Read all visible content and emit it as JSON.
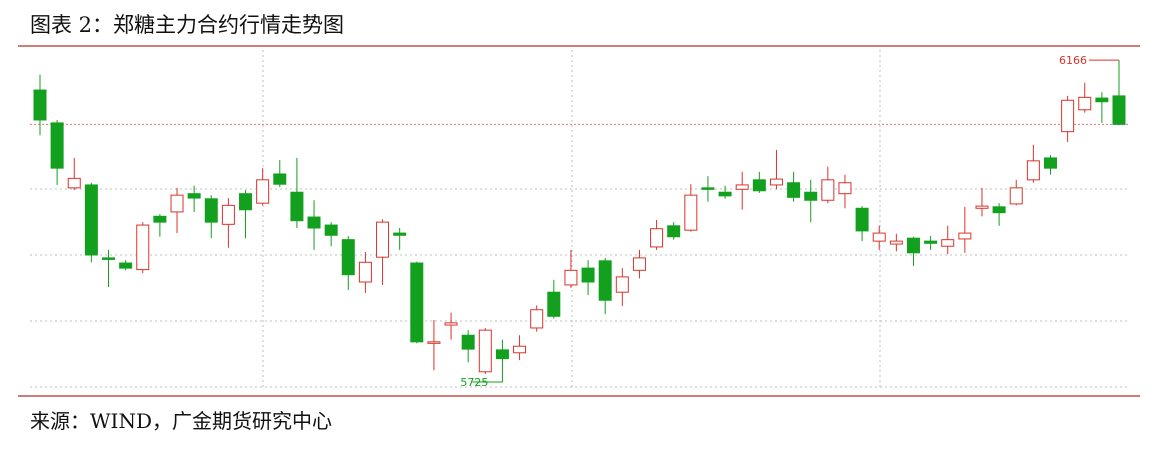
{
  "chart_data": {
    "type": "candlestick",
    "title": "图表 2：郑糖主力合约行情走势图",
    "source": "来源：WIND，广金期货研究中心",
    "up_color": "#d9342b",
    "down_color": "#12a01e",
    "ylim": [
      5714,
      6184
    ],
    "open": [
      6125,
      6080,
      5991,
      5995,
      5895,
      5888,
      5879,
      5952,
      5958,
      5983,
      5976,
      5941,
      5983,
      5970,
      6010,
      5985,
      5951,
      5940,
      5920,
      5862,
      5896,
      5929,
      5888,
      5778,
      5803,
      5789,
      5739,
      5769,
      5765,
      5799,
      5848,
      5858,
      5881,
      5891,
      5848,
      5878,
      5910,
      5939,
      5933,
      5991,
      5985,
      5989,
      6002,
      5995,
      5998,
      5985,
      5974,
      5983,
      5963,
      5918,
      5914,
      5922,
      5918,
      5911,
      5921,
      5963,
      5965,
      5969,
      6002,
      6032,
      6068,
      6098,
      6114,
      6117
    ],
    "high": [
      6146,
      6084,
      6032,
      5998,
      5906,
      5892,
      5944,
      5955,
      5991,
      5994,
      5981,
      5977,
      5988,
      6018,
      6029,
      6032,
      5974,
      5944,
      5925,
      5903,
      5948,
      5936,
      5890,
      5810,
      5820,
      5796,
      5799,
      5783,
      5789,
      5830,
      5865,
      5906,
      5892,
      5895,
      5881,
      5906,
      5947,
      5944,
      5996,
      6007,
      5994,
      6013,
      6013,
      6043,
      6013,
      6002,
      6020,
      6009,
      5966,
      5939,
      5928,
      5924,
      5925,
      5939,
      5965,
      5991,
      5970,
      6002,
      6050,
      6036,
      6117,
      6135,
      6122,
      6166
    ],
    "low": [
      6063,
      5995,
      5988,
      5889,
      5855,
      5878,
      5874,
      5924,
      5929,
      5958,
      5922,
      5909,
      5922,
      5967,
      5992,
      5936,
      5906,
      5911,
      5851,
      5847,
      5858,
      5906,
      5778,
      5741,
      5783,
      5752,
      5736,
      5725,
      5755,
      5794,
      5812,
      5854,
      5844,
      5818,
      5829,
      5867,
      5906,
      5920,
      5931,
      5972,
      5976,
      5961,
      5984,
      5989,
      5972,
      5944,
      5970,
      5963,
      5918,
      5906,
      5904,
      5884,
      5906,
      5900,
      5902,
      5952,
      5939,
      5967,
      5998,
      6009,
      6054,
      6094,
      6080,
      6077
    ],
    "close": [
      6084,
      6018,
      6004,
      5899,
      5894,
      5881,
      5940,
      5944,
      5981,
      5977,
      5944,
      5967,
      5961,
      6002,
      5996,
      5946,
      5936,
      5926,
      5872,
      5889,
      5944,
      5926,
      5780,
      5780,
      5806,
      5770,
      5796,
      5757,
      5774,
      5824,
      5815,
      5878,
      5862,
      5837,
      5869,
      5895,
      5935,
      5924,
      5981,
      5989,
      5980,
      5995,
      5987,
      6003,
      5978,
      5974,
      6002,
      5998,
      5932,
      5929,
      5918,
      5902,
      5915,
      5920,
      5929,
      5966,
      5957,
      5991,
      6028,
      6018,
      6111,
      6115,
      6109,
      6078
    ]
  }
}
